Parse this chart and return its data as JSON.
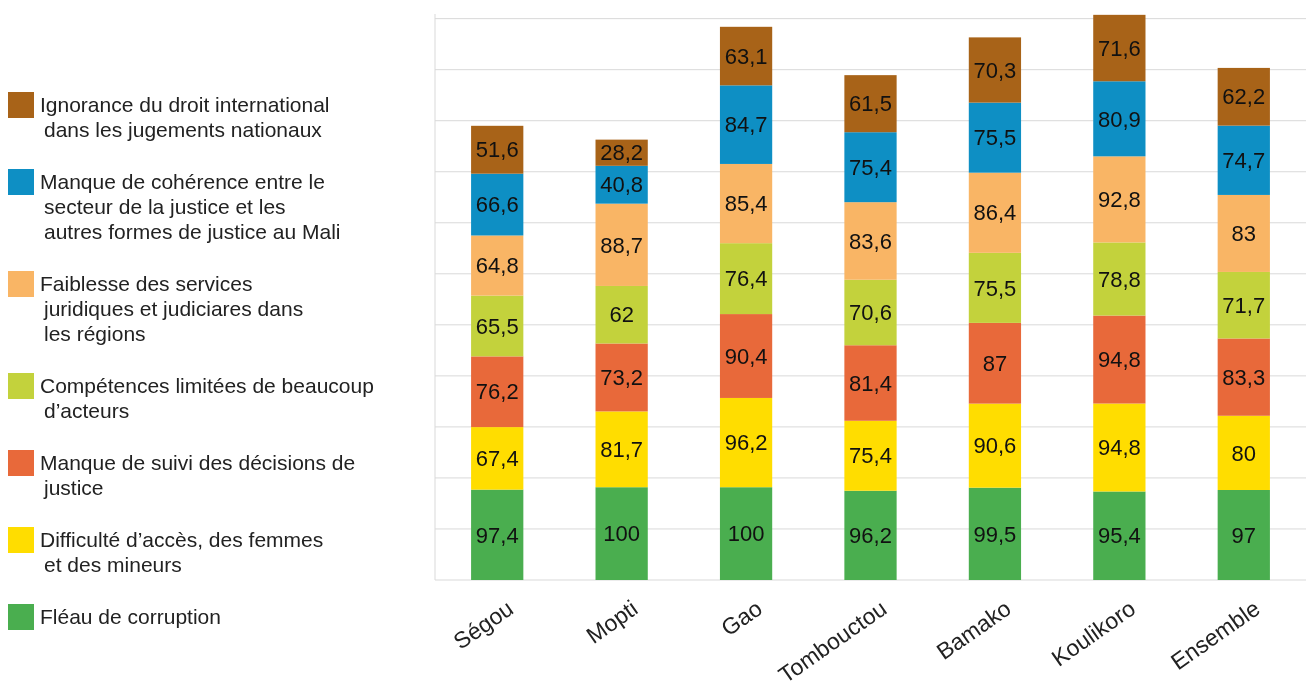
{
  "chart_data": {
    "type": "bar",
    "stacked": true,
    "grid": "y",
    "legend": "left",
    "tick_labels": "x",
    "categories": [
      "Ségou",
      "Mopti",
      "Gao",
      "Tombouctou",
      "Bamako",
      "Koulikoro",
      "Ensemble"
    ],
    "ylim": [
      0,
      610
    ],
    "yticks": [
      {
        "value": 0,
        "label": null
      },
      {
        "value": 55,
        "label": null
      },
      {
        "value": 110,
        "label": null
      },
      {
        "value": 165,
        "label": null
      },
      {
        "value": 220,
        "label": null
      },
      {
        "value": 275,
        "label": null
      },
      {
        "value": 330,
        "label": null
      },
      {
        "value": 385,
        "label": null
      },
      {
        "value": 440,
        "label": null
      },
      {
        "value": 495,
        "label": null
      },
      {
        "value": 550,
        "label": null
      },
      {
        "value": 605,
        "label": null
      }
    ],
    "series": [
      {
        "name": "Fléau de corruption",
        "color": "#4aae4f",
        "values": [
          97.4,
          100,
          100,
          96.2,
          99.5,
          95.4,
          97
        ],
        "value_labels": [
          "97,4",
          "100",
          "100",
          "96,2",
          "99,5",
          "95,4",
          "97"
        ]
      },
      {
        "name": "Difficulté d’accès, des femmes et des mineurs",
        "color": "#ffdd00",
        "values": [
          67.4,
          81.7,
          96.2,
          75.4,
          90.6,
          94.8,
          80
        ],
        "value_labels": [
          "67,4",
          "81,7",
          "96,2",
          "75,4",
          "90,6",
          "94,8",
          "80"
        ]
      },
      {
        "name": "Manque de suivi des décisions de justice",
        "color": "#e8693a",
        "values": [
          76.2,
          73.2,
          90.4,
          81.4,
          87,
          94.8,
          83.3
        ],
        "value_labels": [
          "76,2",
          "73,2",
          "90,4",
          "81,4",
          "87",
          "94,8",
          "83,3"
        ]
      },
      {
        "name": "Compétences limitées de beaucoup d’acteurs",
        "color": "#c3d23c",
        "values": [
          65.5,
          62,
          76.4,
          70.6,
          75.5,
          78.8,
          71.7
        ],
        "value_labels": [
          "65,5",
          "62",
          "76,4",
          "70,6",
          "75,5",
          "78,8",
          "71,7"
        ]
      },
      {
        "name": "Faiblesse des services juridiques et judiciares dans les régions",
        "color": "#f9b565",
        "values": [
          64.8,
          88.7,
          85.4,
          83.6,
          86.4,
          92.8,
          83
        ],
        "value_labels": [
          "64,8",
          "88,7",
          "85,4",
          "83,6",
          "86,4",
          "92,8",
          "83"
        ]
      },
      {
        "name": "Manque de cohérence entre le secteur de la justice et les autres formes de justice au Mali",
        "color": "#0e8fc4",
        "values": [
          66.6,
          40.8,
          84.7,
          75.4,
          75.5,
          80.9,
          74.7
        ],
        "value_labels": [
          "66,6",
          "40,8",
          "84,7",
          "75,4",
          "75,5",
          "80,9",
          "74,7"
        ]
      },
      {
        "name": "Ignorance du droit international dans les jugements nationaux",
        "color": "#a86318",
        "values": [
          51.6,
          28.2,
          63.1,
          61.5,
          70.3,
          71.6,
          62.2
        ],
        "value_labels": [
          "51,6",
          "28,2",
          "63,1",
          "61,5",
          "70,3",
          "71,6",
          "62,2"
        ]
      }
    ]
  }
}
